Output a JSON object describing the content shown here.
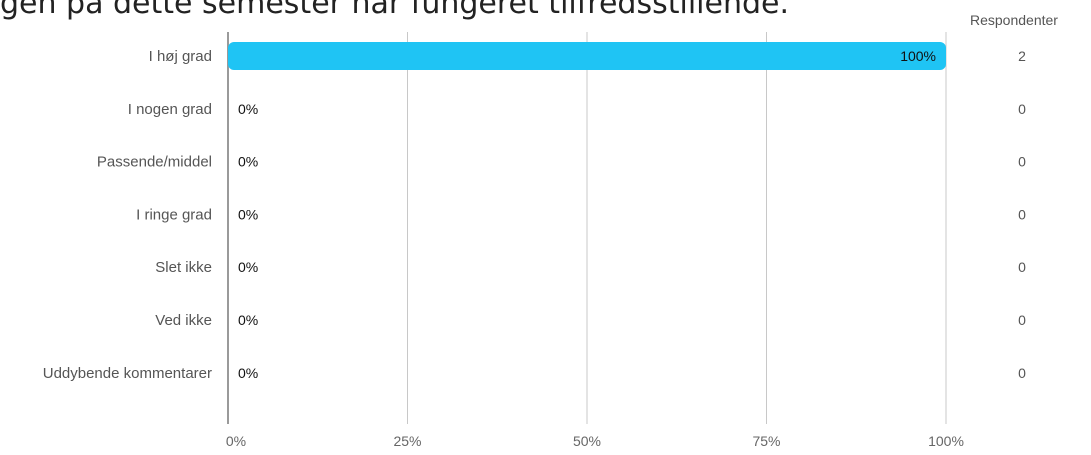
{
  "title": "gen på dette semester har fungeret tilfredsstillende.",
  "respondents_header": "Respondenter",
  "bar_color": "#1fc4f4",
  "chart_data": {
    "type": "bar",
    "orientation": "horizontal",
    "categories": [
      "I høj grad",
      "I nogen grad",
      "Passende/middel",
      "I ringe grad",
      "Slet ikke",
      "Ved ikke",
      "Uddybende kommentarer"
    ],
    "values": [
      100,
      0,
      0,
      0,
      0,
      0,
      0
    ],
    "value_labels": [
      "100%",
      "0%",
      "0%",
      "0%",
      "0%",
      "0%",
      "0%"
    ],
    "respondents": [
      "2",
      "0",
      "0",
      "0",
      "0",
      "0",
      "0"
    ],
    "xticks": [
      0,
      25,
      50,
      75,
      100
    ],
    "xtick_labels": [
      "0%",
      "25%",
      "50%",
      "75%",
      "100%"
    ],
    "xlim": [
      0,
      100
    ],
    "grid": true
  }
}
